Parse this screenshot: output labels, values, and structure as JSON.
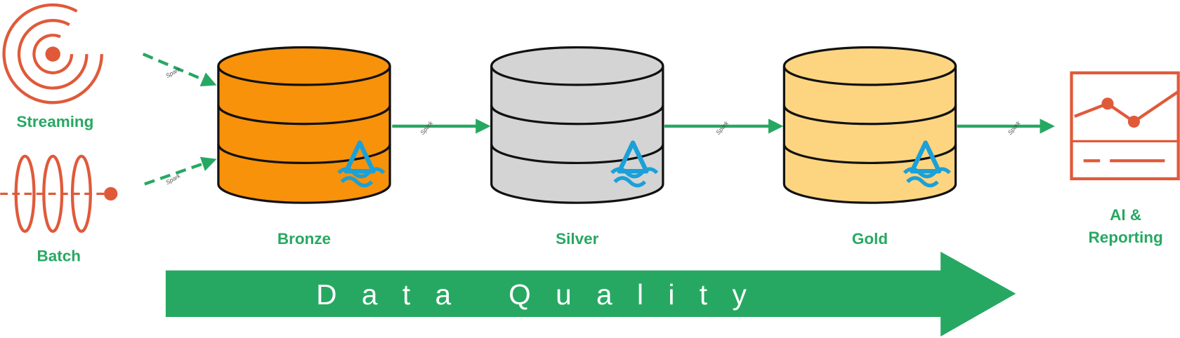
{
  "sources": [
    {
      "label": "Streaming"
    },
    {
      "label": "Batch"
    }
  ],
  "connector_label": "Spark",
  "layers": [
    {
      "label": "Bronze"
    },
    {
      "label": "Silver"
    },
    {
      "label": "Gold"
    }
  ],
  "output": {
    "lines": [
      "AI &",
      "Reporting"
    ]
  },
  "banner": "Data Quality"
}
